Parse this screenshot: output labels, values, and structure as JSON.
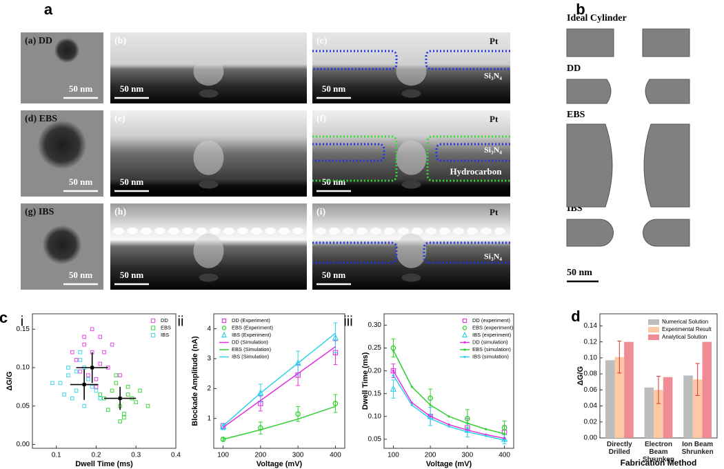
{
  "figure_labels": [
    "a",
    "b",
    "c",
    "d"
  ],
  "panel_a": {
    "images": [
      {
        "tag": "(a) DD",
        "scale": "50 nm"
      },
      {
        "tag": "(b)",
        "scale": "50 nm"
      },
      {
        "tag": "(c)",
        "top": "Pt",
        "layer": "Si₃N₄",
        "scale": "50 nm"
      },
      {
        "tag": "(d) EBS",
        "scale": "50 nm"
      },
      {
        "tag": "(e)",
        "scale": "50 nm"
      },
      {
        "tag": "(f)",
        "top": "Pt",
        "layer": "Si₃N₄",
        "extra": "Hydrocarbon",
        "scale": "50 nm"
      },
      {
        "tag": "(g) IBS",
        "scale": "50 nm"
      },
      {
        "tag": "(h)",
        "scale": "50 nm"
      },
      {
        "tag": "(i)",
        "top": "Pt",
        "layer": "Si₃N₄",
        "scale": "50 nm"
      }
    ]
  },
  "panel_b": {
    "shapes": [
      "Ideal Cylinder",
      "DD",
      "EBS",
      "IBS"
    ],
    "scale": "50 nm"
  },
  "chart_data": [
    {
      "type": "scatter",
      "panel": "i",
      "xlabel": "Dwell Time (ms)",
      "ylabel": "ΔG/G",
      "xlim": [
        0.04,
        0.4
      ],
      "xticks": [
        0.1,
        0.2,
        0.3,
        0.4
      ],
      "ylim": [
        -0.005,
        0.17
      ],
      "yticks": [
        {
          "value": 0,
          "label": "0.00"
        },
        0.05,
        {
          "value": 0.1,
          "label": "0.10"
        },
        0.15
      ],
      "legend": "upper right",
      "series": [
        {
          "name": "DD",
          "color": "#e455e4",
          "marker": "square",
          "x": [
            0.15,
            0.17,
            0.19,
            0.21,
            0.23,
            0.18,
            0.2,
            0.22,
            0.16,
            0.24,
            0.19,
            0.21,
            0.14,
            0.26,
            0.2,
            0.17
          ],
          "values": [
            0.11,
            0.13,
            0.12,
            0.14,
            0.1,
            0.09,
            0.085,
            0.12,
            0.095,
            0.13,
            0.15,
            0.105,
            0.12,
            0.09,
            0.075,
            0.14
          ]
        },
        {
          "name": "EBS",
          "color": "#4fd84f",
          "marker": "square",
          "x": [
            0.22,
            0.24,
            0.26,
            0.28,
            0.3,
            0.25,
            0.27,
            0.29,
            0.23,
            0.31,
            0.26,
            0.28,
            0.21,
            0.33,
            0.25,
            0.27
          ],
          "values": [
            0.06,
            0.07,
            0.05,
            0.065,
            0.055,
            0.08,
            0.04,
            0.06,
            0.045,
            0.07,
            0.03,
            0.075,
            0.065,
            0.05,
            0.09,
            0.035
          ]
        },
        {
          "name": "IBS",
          "color": "#4fd8e8",
          "marker": "square",
          "x": [
            0.11,
            0.13,
            0.15,
            0.17,
            0.19,
            0.14,
            0.16,
            0.18,
            0.12,
            0.2,
            0.15,
            0.17,
            0.09,
            0.21,
            0.13,
            0.16
          ],
          "values": [
            0.08,
            0.09,
            0.07,
            0.1,
            0.075,
            0.06,
            0.11,
            0.085,
            0.065,
            0.07,
            0.095,
            0.05,
            0.08,
            0.06,
            0.1,
            0.12
          ]
        }
      ],
      "means": {
        "color": "#000000",
        "x": [
          0.19,
          0.26,
          0.17
        ],
        "values": [
          0.1,
          0.06,
          0.078
        ],
        "xerr": [
          0.04,
          0.04,
          0.035
        ],
        "yerr": [
          0.02,
          0.015,
          0.02
        ]
      }
    },
    {
      "type": "line",
      "panel": "ii",
      "xlabel": "Voltage (mV)",
      "ylabel": "Blockade Amplitude (nA)",
      "xlim": [
        75,
        425
      ],
      "xticks": [
        100,
        200,
        300,
        400
      ],
      "ylim": [
        0,
        4.5
      ],
      "yticks": [
        1,
        2,
        3,
        4
      ],
      "legend": "upper left",
      "series": [
        {
          "name": "DD (Experiment)",
          "color": "#e030e0",
          "marker": "square",
          "x": [
            100,
            200,
            300,
            400
          ],
          "values": [
            0.75,
            1.5,
            2.45,
            3.2
          ],
          "errors": [
            0.08,
            0.25,
            0.35,
            0.4
          ]
        },
        {
          "name": "EBS (Experiment)",
          "color": "#30d030",
          "marker": "circle",
          "x": [
            100,
            200,
            300,
            400
          ],
          "values": [
            0.3,
            0.68,
            1.15,
            1.5
          ],
          "errors": [
            0.05,
            0.2,
            0.25,
            0.3
          ]
        },
        {
          "name": "IBS (Experiment)",
          "color": "#30d0e8",
          "marker": "triangle",
          "x": [
            100,
            200,
            300,
            400
          ],
          "values": [
            0.72,
            1.85,
            2.85,
            3.7
          ],
          "errors": [
            0.1,
            0.3,
            0.4,
            0.5
          ]
        },
        {
          "name": "DD (Simulation)",
          "color": "#e030e0",
          "line": true,
          "x": [
            100,
            200,
            300,
            400
          ],
          "values": [
            0.7,
            1.6,
            2.5,
            3.4
          ]
        },
        {
          "name": "EBS (Simulation)",
          "color": "#30d030",
          "line": true,
          "x": [
            100,
            200,
            300,
            400
          ],
          "values": [
            0.3,
            0.62,
            0.98,
            1.4
          ]
        },
        {
          "name": "IBS (Simulation)",
          "color": "#30d0e8",
          "line": true,
          "x": [
            100,
            200,
            300,
            400
          ],
          "values": [
            0.75,
            1.85,
            2.85,
            3.85
          ]
        }
      ]
    },
    {
      "type": "line",
      "panel": "iii",
      "xlabel": "Voltage (mV)",
      "ylabel": "Dwell Time (ms)",
      "xlim": [
        75,
        425
      ],
      "xticks": [
        100,
        200,
        300,
        400
      ],
      "ylim": [
        0.03,
        0.325
      ],
      "yticks": [
        0.05,
        {
          "value": 0.1,
          "label": "0.10"
        },
        0.15,
        {
          "value": 0.2,
          "label": "0.20"
        },
        0.25,
        {
          "value": 0.3,
          "label": "0.30"
        }
      ],
      "legend": "upper right",
      "series": [
        {
          "name": "DD (experiment)",
          "color": "#e030e0",
          "marker": "square",
          "x": [
            100,
            200,
            300,
            400
          ],
          "values": [
            0.2,
            0.1,
            0.075,
            0.065
          ],
          "errors": [
            0.015,
            0.02,
            0.02,
            0.015
          ]
        },
        {
          "name": "EBS (experiment)",
          "color": "#30d030",
          "marker": "circle",
          "x": [
            100,
            200,
            300,
            400
          ],
          "values": [
            0.25,
            0.14,
            0.095,
            0.075
          ],
          "errors": [
            0.02,
            0.02,
            0.02,
            0.015
          ]
        },
        {
          "name": "IBS (experiment)",
          "color": "#30d0e8",
          "marker": "triangle",
          "x": [
            100,
            200,
            300,
            400
          ],
          "values": [
            0.16,
            0.1,
            0.07,
            0.05
          ],
          "errors": [
            0.02,
            0.02,
            0.015,
            0.01
          ]
        },
        {
          "name": "DD (simulation)",
          "color": "#e030e0",
          "line": true,
          "marker": "dot",
          "x": [
            100,
            150,
            200,
            250,
            300,
            350,
            400
          ],
          "values": [
            0.2,
            0.13,
            0.1,
            0.082,
            0.07,
            0.06,
            0.052
          ]
        },
        {
          "name": "EBS (simulation)",
          "color": "#30d030",
          "line": true,
          "marker": "dot",
          "x": [
            100,
            150,
            200,
            250,
            300,
            350,
            400
          ],
          "values": [
            0.245,
            0.165,
            0.125,
            0.1,
            0.085,
            0.072,
            0.062
          ]
        },
        {
          "name": "IBS (simulation)",
          "color": "#30d0e8",
          "line": true,
          "marker": "dot",
          "x": [
            100,
            150,
            200,
            250,
            300,
            350,
            400
          ],
          "values": [
            0.19,
            0.125,
            0.095,
            0.078,
            0.066,
            0.057,
            0.048
          ]
        }
      ]
    },
    {
      "type": "bar",
      "xlabel": "Fabrication Method",
      "ylabel": "ΔG/G",
      "categories": [
        "Directly Drilled",
        "Electron Beam Shrunken",
        "Ion Beam Shrunken"
      ],
      "ylim": [
        0,
        0.155
      ],
      "yticks": [
        {
          "value": 0,
          "label": "0.00"
        },
        0.02,
        0.04,
        0.06,
        0.08,
        {
          "value": 0.1,
          "label": "0.10"
        },
        0.12,
        0.14
      ],
      "legend": "upper right",
      "series": [
        {
          "name": "Numerical Solution",
          "color": "#bdbdbd",
          "values": [
            0.097,
            0.063,
            0.078
          ]
        },
        {
          "name": "Experimental Result",
          "color": "#fcc9a4",
          "values": [
            0.101,
            0.06,
            0.073
          ],
          "errors": [
            0.02,
            0.017,
            0.02
          ]
        },
        {
          "name": "Analytical Solution",
          "color": "#f08c96",
          "values": [
            0.12,
            0.076,
            0.12
          ]
        }
      ]
    }
  ]
}
